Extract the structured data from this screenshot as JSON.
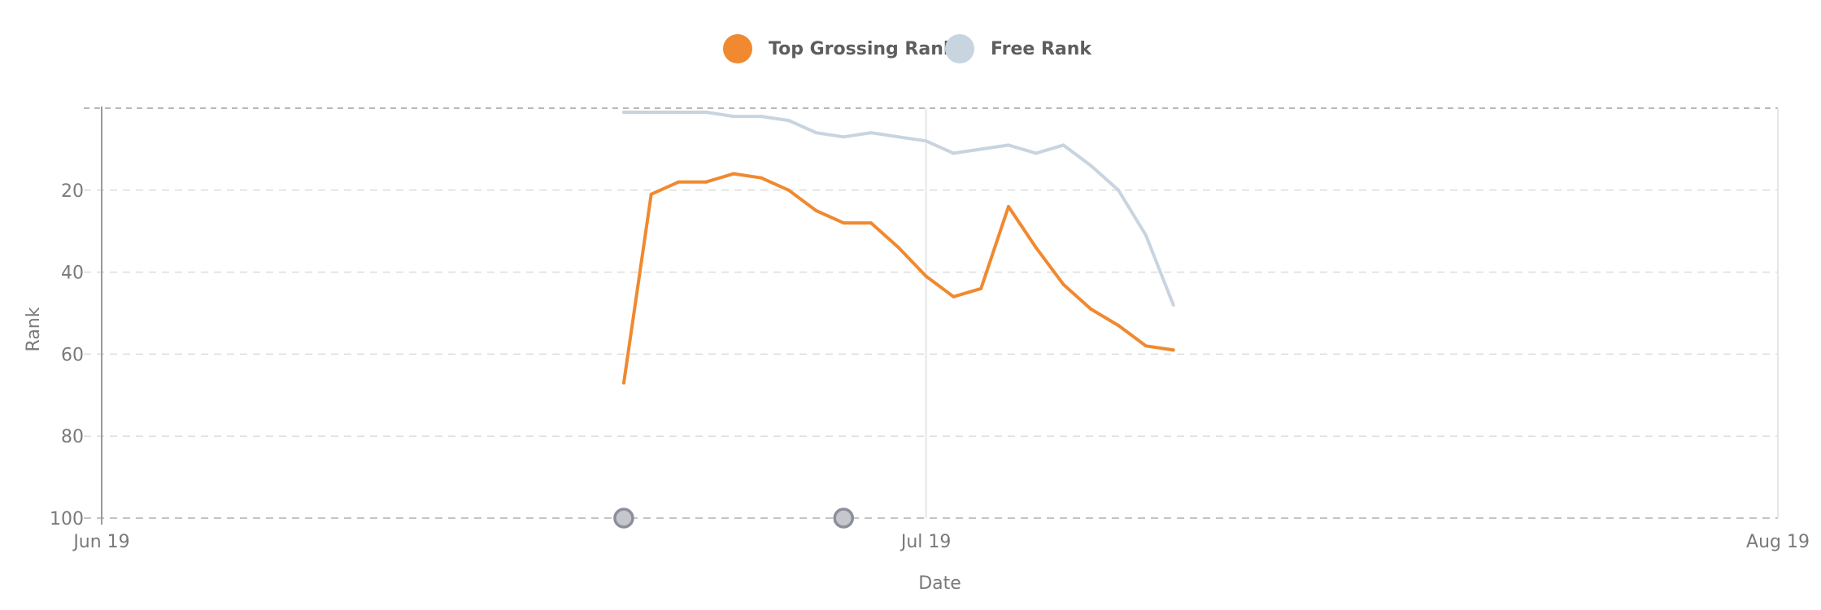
{
  "chart_data": {
    "type": "line",
    "xlabel": "Date",
    "ylabel": "Rank",
    "x_ticks": [
      "Jun 19",
      "Jul 19",
      "Aug 19"
    ],
    "y_ticks": [
      20,
      40,
      60,
      80,
      100
    ],
    "ylim": [
      0,
      100
    ],
    "y_reversed": true,
    "grid": true,
    "legend_position": "top-center",
    "series": [
      {
        "name": "Top Grossing Rank",
        "color": "#f0892f",
        "points": [
          {
            "date": "2019-06-20",
            "rank": 67
          },
          {
            "date": "2019-06-21",
            "rank": 21
          },
          {
            "date": "2019-06-22",
            "rank": 18
          },
          {
            "date": "2019-06-23",
            "rank": 18
          },
          {
            "date": "2019-06-24",
            "rank": 16
          },
          {
            "date": "2019-06-25",
            "rank": 17
          },
          {
            "date": "2019-06-26",
            "rank": 20
          },
          {
            "date": "2019-06-27",
            "rank": 25
          },
          {
            "date": "2019-06-28",
            "rank": 28
          },
          {
            "date": "2019-06-29",
            "rank": 28
          },
          {
            "date": "2019-06-30",
            "rank": 34
          },
          {
            "date": "2019-07-01",
            "rank": 41
          },
          {
            "date": "2019-07-02",
            "rank": 46
          },
          {
            "date": "2019-07-03",
            "rank": 44
          },
          {
            "date": "2019-07-04",
            "rank": 24
          },
          {
            "date": "2019-07-05",
            "rank": 34
          },
          {
            "date": "2019-07-06",
            "rank": 43
          },
          {
            "date": "2019-07-07",
            "rank": 49
          },
          {
            "date": "2019-07-08",
            "rank": 53
          },
          {
            "date": "2019-07-09",
            "rank": 58
          },
          {
            "date": "2019-07-10",
            "rank": 59
          }
        ]
      },
      {
        "name": "Free Rank",
        "color": "#c8d4df",
        "points": [
          {
            "date": "2019-06-20",
            "rank": 1
          },
          {
            "date": "2019-06-21",
            "rank": 1
          },
          {
            "date": "2019-06-22",
            "rank": 1
          },
          {
            "date": "2019-06-23",
            "rank": 1
          },
          {
            "date": "2019-06-24",
            "rank": 2
          },
          {
            "date": "2019-06-25",
            "rank": 2
          },
          {
            "date": "2019-06-26",
            "rank": 3
          },
          {
            "date": "2019-06-27",
            "rank": 6
          },
          {
            "date": "2019-06-28",
            "rank": 7
          },
          {
            "date": "2019-06-29",
            "rank": 6
          },
          {
            "date": "2019-06-30",
            "rank": 7
          },
          {
            "date": "2019-07-01",
            "rank": 8
          },
          {
            "date": "2019-07-02",
            "rank": 11
          },
          {
            "date": "2019-07-03",
            "rank": 10
          },
          {
            "date": "2019-07-04",
            "rank": 9
          },
          {
            "date": "2019-07-05",
            "rank": 11
          },
          {
            "date": "2019-07-06",
            "rank": 9
          },
          {
            "date": "2019-07-07",
            "rank": 14
          },
          {
            "date": "2019-07-08",
            "rank": 20
          },
          {
            "date": "2019-07-09",
            "rank": 31
          },
          {
            "date": "2019-07-10",
            "rank": 48
          }
        ]
      }
    ],
    "annotations": [
      {
        "date": "2019-06-20",
        "rank": 100
      },
      {
        "date": "2019-06-28",
        "rank": 100
      }
    ]
  }
}
